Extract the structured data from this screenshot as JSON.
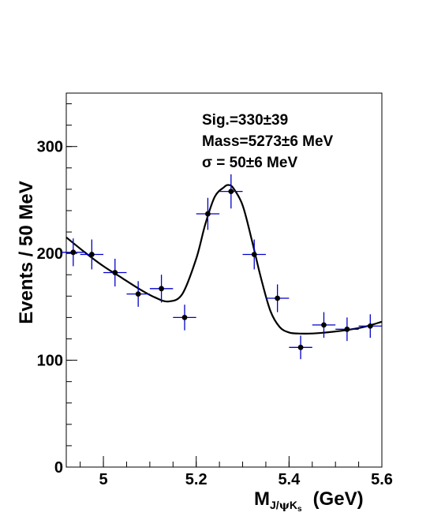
{
  "chart_data": {
    "type": "scatter",
    "ylabel": "Events / 50 MeV",
    "xlabel": {
      "main": "M",
      "sub_prefix": "J/",
      "sub_psi": "ψ",
      "sub_k": "K",
      "sub_s": "s",
      "unit": "(GeV)"
    },
    "xlim": [
      4.92,
      5.6
    ],
    "ylim": [
      0,
      350
    ],
    "x_ticks": [
      {
        "value": 5.0,
        "label": "5"
      },
      {
        "value": 5.2,
        "label": "5.2"
      },
      {
        "value": 5.4,
        "label": "5.4"
      },
      {
        "value": 5.6,
        "label": "5.6"
      }
    ],
    "y_ticks": [
      {
        "value": 0,
        "label": "0"
      },
      {
        "value": 100,
        "label": "100"
      },
      {
        "value": 200,
        "label": "200"
      },
      {
        "value": 300,
        "label": "300"
      }
    ],
    "x_minor_step": 0.05,
    "y_minor_step": 20,
    "annotations": {
      "line1": "Sig.=330±39",
      "line2": "Mass=5273±6 MeV",
      "line3": "σ = 50±6 MeV"
    },
    "series": [
      {
        "kind": "data-points",
        "x_halfwidth": 0.025,
        "points": [
          {
            "x": 4.935,
            "y": 201,
            "err": 13
          },
          {
            "x": 4.975,
            "y": 199,
            "err": 14
          },
          {
            "x": 5.025,
            "y": 182,
            "err": 13
          },
          {
            "x": 5.075,
            "y": 162,
            "err": 12
          },
          {
            "x": 5.125,
            "y": 167,
            "err": 13
          },
          {
            "x": 5.175,
            "y": 140,
            "err": 12
          },
          {
            "x": 5.225,
            "y": 237,
            "err": 15
          },
          {
            "x": 5.275,
            "y": 258,
            "err": 16
          },
          {
            "x": 5.325,
            "y": 199,
            "err": 14
          },
          {
            "x": 5.375,
            "y": 158,
            "err": 13
          },
          {
            "x": 5.425,
            "y": 112,
            "err": 11
          },
          {
            "x": 5.475,
            "y": 133,
            "err": 12
          },
          {
            "x": 5.525,
            "y": 129,
            "err": 11
          },
          {
            "x": 5.575,
            "y": 132,
            "err": 11
          }
        ]
      },
      {
        "kind": "fit-curve",
        "x": [
          4.92,
          4.96,
          5.0,
          5.04,
          5.08,
          5.11,
          5.14,
          5.17,
          5.2,
          5.22,
          5.24,
          5.26,
          5.27,
          5.28,
          5.3,
          5.32,
          5.34,
          5.36,
          5.38,
          5.4,
          5.42,
          5.45,
          5.48,
          5.52,
          5.56,
          5.6
        ],
        "y": [
          215,
          201,
          188,
          177,
          166,
          159,
          155,
          162,
          195,
          228,
          253,
          262,
          264,
          261,
          245,
          212,
          176,
          146,
          131,
          126,
          125,
          125,
          126,
          128,
          131,
          136
        ]
      }
    ],
    "colors": {
      "error_bars": "#0000cc",
      "markers": "#000000",
      "curve": "#000000",
      "frame": "#000000"
    }
  }
}
